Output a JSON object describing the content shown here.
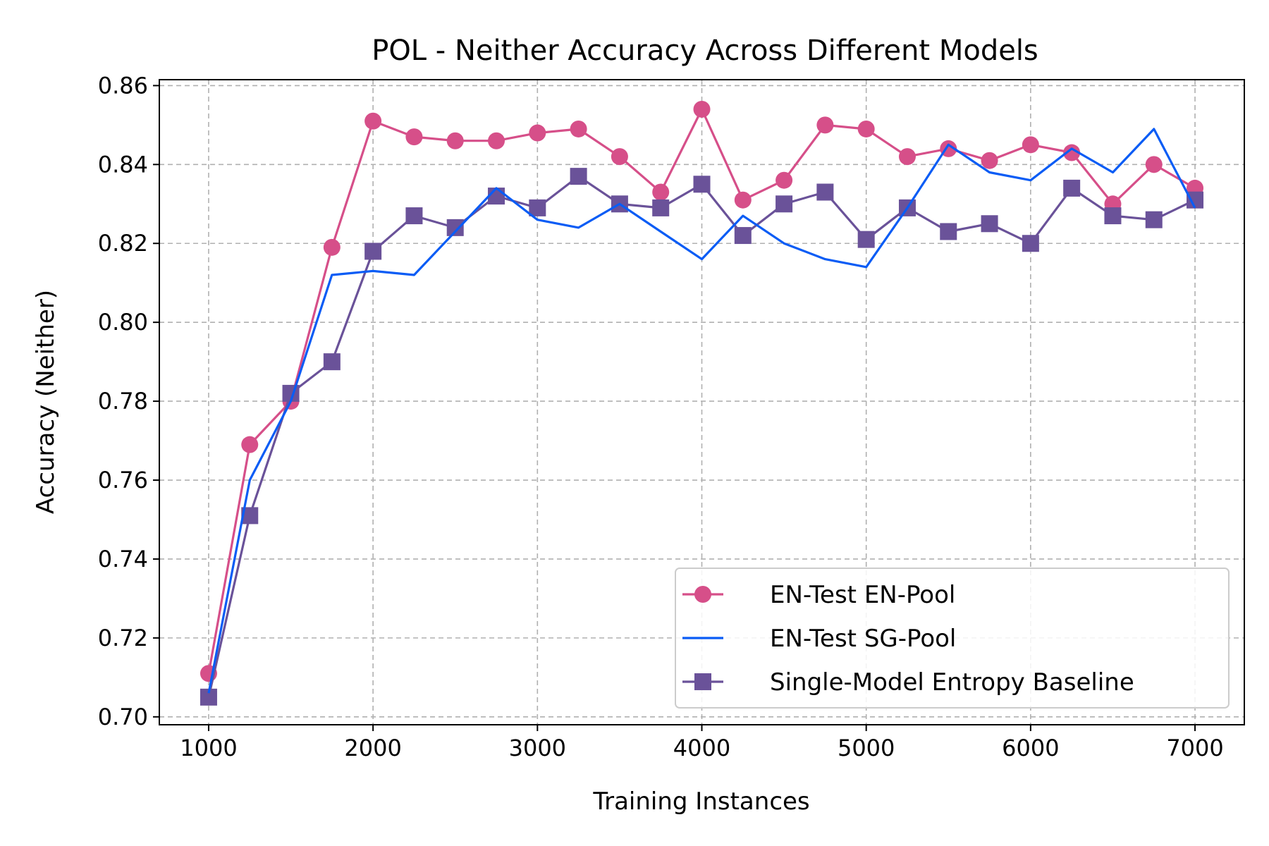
{
  "chart_data": {
    "type": "line",
    "title": "POL - Neither Accuracy Across Different Models",
    "xlabel": "Training Instances",
    "ylabel": "Accuracy (Neither)",
    "xlim": [
      700,
      7300
    ],
    "ylim": [
      0.698,
      0.8615
    ],
    "xticks": [
      1000,
      2000,
      3000,
      4000,
      5000,
      6000,
      7000
    ],
    "yticks": [
      0.7,
      0.72,
      0.74,
      0.76,
      0.78,
      0.8,
      0.82,
      0.84,
      0.86
    ],
    "xtick_labels": [
      "1000",
      "2000",
      "3000",
      "4000",
      "5000",
      "6000",
      "7000"
    ],
    "ytick_labels": [
      "0.70",
      "0.72",
      "0.74",
      "0.76",
      "0.78",
      "0.80",
      "0.82",
      "0.84",
      "0.86"
    ],
    "grid": true,
    "legend_position": "lower-right",
    "x": [
      1000,
      1250,
      1500,
      1750,
      2000,
      2250,
      2500,
      2750,
      3000,
      3250,
      3500,
      3750,
      4000,
      4250,
      4500,
      4750,
      5000,
      5250,
      5500,
      5750,
      6000,
      6250,
      6500,
      6750,
      7000
    ],
    "series": [
      {
        "name": "EN-Test EN-Pool",
        "color": "#d64f89",
        "marker": "circle",
        "values": [
          0.711,
          0.769,
          0.78,
          0.819,
          0.851,
          0.847,
          0.846,
          0.846,
          0.848,
          0.849,
          0.842,
          0.833,
          0.854,
          0.831,
          0.836,
          0.85,
          0.849,
          0.842,
          0.844,
          0.841,
          0.845,
          0.843,
          0.83,
          0.84,
          0.834
        ]
      },
      {
        "name": "EN-Test SG-Pool",
        "color": "#0a5cf5",
        "marker": "none",
        "values": [
          0.706,
          0.76,
          0.78,
          0.812,
          0.813,
          0.812,
          0.823,
          0.834,
          0.826,
          0.824,
          0.83,
          0.823,
          0.816,
          0.827,
          0.82,
          0.816,
          0.814,
          0.829,
          0.845,
          0.838,
          0.836,
          0.844,
          0.838,
          0.849,
          0.829
        ]
      },
      {
        "name": "Single-Model Entropy Baseline",
        "color": "#6a5299",
        "marker": "square",
        "values": [
          0.705,
          0.751,
          0.782,
          0.79,
          0.818,
          0.827,
          0.824,
          0.832,
          0.829,
          0.837,
          0.83,
          0.829,
          0.835,
          0.822,
          0.83,
          0.833,
          0.821,
          0.829,
          0.823,
          0.825,
          0.82,
          0.834,
          0.827,
          0.826,
          0.831
        ]
      }
    ]
  }
}
